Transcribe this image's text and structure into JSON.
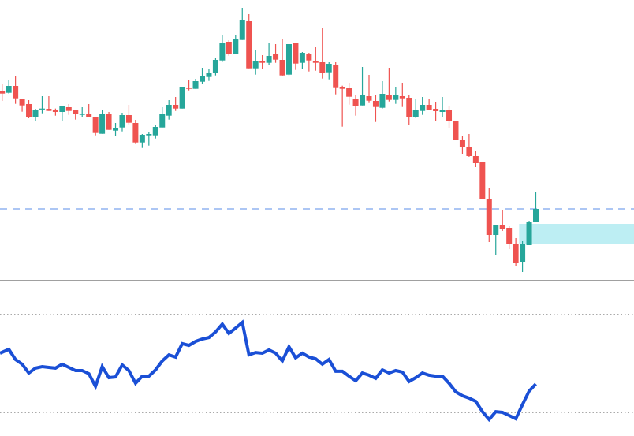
{
  "chart_data": [
    {
      "type": "candlestick",
      "title": "",
      "xlabel": "",
      "ylabel": "",
      "ylim": [
        5,
        360
      ],
      "grid": false,
      "colors": {
        "up": "#26a69a",
        "down": "#ef5350",
        "price_line": "#90b4f0",
        "zone": "#bdeef3"
      },
      "price_line": 95,
      "zone": {
        "top": 76,
        "bottom": 50,
        "start_index": 77.5
      },
      "ohlc": [
        [
          244,
          253,
          232,
          241.3
        ],
        [
          242.3,
          258,
          241.3,
          251
        ],
        [
          251,
          263,
          228.3,
          235.3
        ],
        [
          235,
          235,
          218.3,
          226.3
        ],
        [
          228,
          233,
          210,
          211
        ],
        [
          211,
          222,
          206.3,
          220
        ],
        [
          221.3,
          238,
          216.3,
          222.3
        ],
        [
          222,
          238,
          219.3,
          219.3
        ],
        [
          221,
          222.3,
          213.3,
          218
        ],
        [
          218,
          226,
          206.3,
          225
        ],
        [
          224,
          228,
          214.3,
          219.3
        ],
        [
          220,
          220,
          208.3,
          215.3
        ],
        [
          214.3,
          224,
          211.3,
          216
        ],
        [
          216,
          228,
          211.3,
          211.3
        ],
        [
          211,
          211,
          188.3,
          191.3
        ],
        [
          190.3,
          221,
          190.3,
          216
        ],
        [
          215,
          218,
          195.3,
          195.3
        ],
        [
          194.3,
          204,
          187.3,
          198
        ],
        [
          198.3,
          217,
          193.3,
          214
        ],
        [
          214,
          227,
          202.3,
          204.3
        ],
        [
          204,
          208,
          177.3,
          179.3
        ],
        [
          179.3,
          190,
          172.3,
          189
        ],
        [
          188.3,
          192,
          175.3,
          190
        ],
        [
          188.3,
          201,
          184.3,
          199
        ],
        [
          198.3,
          224,
          198.3,
          215
        ],
        [
          213.3,
          233,
          208.3,
          227
        ],
        [
          227,
          237,
          219.3,
          222.3
        ],
        [
          222.3,
          250,
          222.3,
          250
        ],
        [
          249,
          258,
          245.3,
          247.3
        ],
        [
          247.3,
          260,
          247.3,
          257
        ],
        [
          256.3,
          274,
          253.3,
          263
        ],
        [
          262.3,
          273,
          257.3,
          267
        ],
        [
          267.3,
          287,
          264.3,
          284
        ],
        [
          283.3,
          316,
          281.3,
          306
        ],
        [
          307,
          309,
          289.3,
          291.3
        ],
        [
          291.3,
          316,
          291.3,
          310
        ],
        [
          309.3,
          350,
          309.3,
          334
        ],
        [
          333,
          342,
          273.3,
          273.3
        ],
        [
          273.3,
          296,
          265.3,
          282
        ],
        [
          283,
          290,
          272.3,
          280.3
        ],
        [
          280.3,
          306,
          277.3,
          289
        ],
        [
          291,
          304,
          280.3,
          284.3
        ],
        [
          284,
          311,
          263.3,
          264.3
        ],
        [
          265.3,
          304,
          264.3,
          304
        ],
        [
          305,
          306,
          271.3,
          279.3
        ],
        [
          280.3,
          294,
          272.3,
          293
        ],
        [
          292,
          293,
          269.3,
          283.3
        ],
        [
          283,
          301,
          270.3,
          280.3
        ],
        [
          281,
          325,
          260.3,
          267.3
        ],
        [
          268.3,
          281,
          259.3,
          279
        ],
        [
          278,
          281,
          240.3,
          249.3
        ],
        [
          250,
          251.3,
          199.3,
          247.3
        ],
        [
          249,
          255,
          227.3,
          237.3
        ],
        [
          235,
          239.3,
          213.3,
          225.3
        ],
        [
          226.3,
          275,
          226.3,
          240
        ],
        [
          238,
          265,
          229.3,
          232.3
        ],
        [
          232,
          240,
          205.3,
          224.3
        ],
        [
          223.3,
          257,
          222.3,
          241
        ],
        [
          240,
          274,
          231.3,
          233.3
        ],
        [
          233.3,
          250,
          228.3,
          239
        ],
        [
          238,
          255,
          224.3,
          235.3
        ],
        [
          236,
          239.3,
          201.3,
          211.3
        ],
        [
          211.3,
          235,
          210.3,
          221
        ],
        [
          219.3,
          237,
          214.3,
          227
        ],
        [
          227,
          234,
          220,
          221
        ],
        [
          222,
          230,
          207,
          219
        ],
        [
          218,
          237,
          211,
          221
        ],
        [
          221,
          225,
          198,
          206
        ],
        [
          206,
          206,
          182,
          182
        ],
        [
          183,
          188,
          165,
          174
        ],
        [
          174,
          190,
          161,
          162
        ],
        [
          162,
          169,
          148,
          153
        ],
        [
          154,
          154,
          107,
          107
        ],
        [
          107,
          121,
          53,
          62
        ],
        [
          62,
          75,
          37,
          75
        ],
        [
          75,
          94,
          67,
          69
        ],
        [
          71,
          73,
          44,
          50
        ],
        [
          51,
          58,
          23,
          27
        ],
        [
          28,
          54,
          15,
          51
        ],
        [
          49,
          80,
          49,
          78
        ],
        [
          78,
          116,
          78,
          95
        ]
      ]
    },
    {
      "type": "line",
      "title": "",
      "xlabel": "",
      "ylabel": "",
      "ylim": [
        30,
        70
      ],
      "levels": [
        70,
        30
      ],
      "color": "#1a4fd6",
      "values": [
        54.2,
        55.8,
        51.6,
        49.7,
        46.1,
        48.1,
        48.7,
        48.4,
        48.1,
        49.7,
        48.4,
        47.1,
        47.1,
        45.8,
        40.6,
        48.7,
        44.2,
        44.5,
        49.4,
        47.1,
        41.9,
        44.8,
        44.8,
        47.4,
        51.0,
        53.5,
        52.6,
        58.1,
        57.4,
        59.0,
        60.0,
        60.6,
        62.9,
        66.1,
        62.3,
        64.5,
        66.8,
        53.5,
        54.5,
        54.2,
        55.5,
        54.2,
        51.0,
        56.8,
        52.3,
        54.2,
        52.6,
        51.9,
        49.7,
        51.6,
        46.8,
        46.8,
        44.8,
        42.9,
        46.1,
        45.2,
        43.9,
        47.4,
        46.1,
        47.1,
        46.5,
        42.6,
        44.2,
        46.1,
        45.2,
        44.8,
        44.8,
        41.9,
        38.4,
        36.8,
        35.8,
        34.5,
        30.3,
        27.1,
        30.3,
        30.0,
        28.7,
        27.4,
        33.2,
        38.7,
        41.6
      ]
    }
  ]
}
